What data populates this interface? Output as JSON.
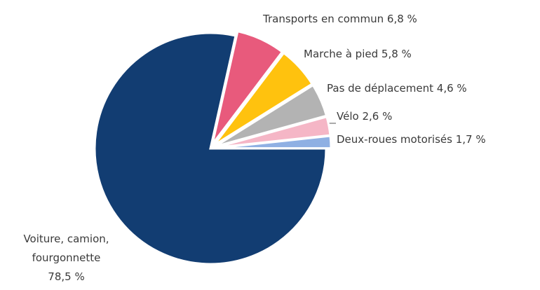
{
  "chart_data": {
    "type": "pie",
    "categories": [
      "Voiture, camion, fourgonnette",
      "Transports en commun",
      "Marche à pied",
      "Pas de déplacement",
      "Vélo",
      "Deux-roues motorisés"
    ],
    "values": [
      78.5,
      6.8,
      5.8,
      4.6,
      2.6,
      1.7
    ],
    "value_labels": [
      "78,5 %",
      "6,8 %",
      "5,8 %",
      "4,6 %",
      "2,6 %",
      "1,7 %"
    ],
    "colors": [
      "#123d72",
      "#e85a7c",
      "#ffc20e",
      "#b3b3b3",
      "#f5b6c6",
      "#8fb0e3"
    ]
  }
}
